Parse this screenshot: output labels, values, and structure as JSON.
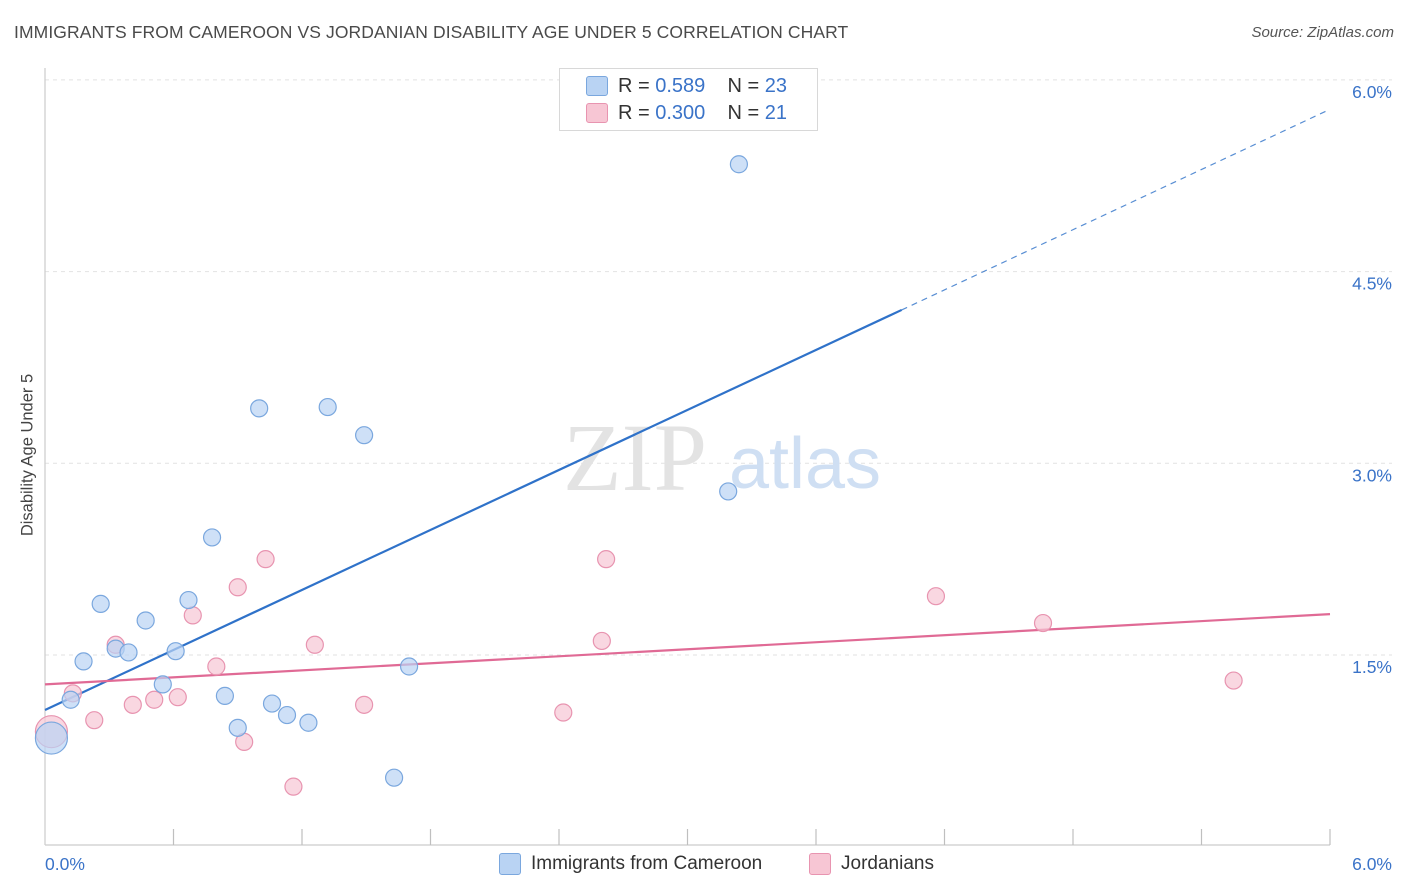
{
  "header": {
    "title": "IMMIGRANTS FROM CAMEROON VS JORDANIAN DISABILITY AGE UNDER 5 CORRELATION CHART",
    "source": "Source: ZipAtlas.com"
  },
  "watermark": {
    "zip": "ZIP",
    "atlas": "atlas"
  },
  "legend": {
    "rows": [
      {
        "r_label": "R =",
        "r_value": "0.589",
        "n_label": "N =",
        "n_value": "23"
      },
      {
        "r_label": "R =",
        "r_value": "0.300",
        "n_label": "N =",
        "n_value": "21"
      }
    ]
  },
  "bottom_legend": {
    "series1": "Immigrants from Cameroon",
    "series2": "Jordanians"
  },
  "colors": {
    "blue_fill": "#b9d3f3",
    "blue_stroke": "#7aa7de",
    "blue_line": "#2f72c9",
    "pink_fill": "#f7c6d4",
    "pink_stroke": "#e894b0",
    "pink_line": "#e06a95",
    "tick_label": "#3a73c8",
    "grid": "#e2e2e2"
  },
  "chart_data": {
    "type": "scatter",
    "title": "IMMIGRANTS FROM CAMEROON VS JORDANIAN DISABILITY AGE UNDER 5 CORRELATION CHART",
    "xlabel": "",
    "ylabel": "Disability Age Under 5",
    "xlim": [
      0,
      6.0
    ],
    "ylim": [
      0,
      6.3
    ],
    "x_tick_labels": [
      {
        "value": 0,
        "label": "0.0%"
      },
      {
        "value": 6.0,
        "label": "6.0%"
      }
    ],
    "y_tick_labels": [
      {
        "value": 1.5,
        "label": "1.5%"
      },
      {
        "value": 3.0,
        "label": "3.0%"
      },
      {
        "value": 4.5,
        "label": "4.5%"
      },
      {
        "value": 6.0,
        "label": "6.0%"
      }
    ],
    "x_minor_ticks": [
      0.6,
      1.2,
      1.8,
      2.4,
      3.0,
      3.6,
      4.2,
      4.8,
      5.4,
      6.0
    ],
    "grid": true,
    "series": [
      {
        "name": "Immigrants from Cameroon",
        "r": 0.589,
        "n": 23,
        "points": [
          {
            "x": 0.03,
            "y": 0.85,
            "size": "large"
          },
          {
            "x": 0.12,
            "y": 1.15
          },
          {
            "x": 0.18,
            "y": 1.45
          },
          {
            "x": 0.26,
            "y": 1.9
          },
          {
            "x": 0.33,
            "y": 1.55
          },
          {
            "x": 0.39,
            "y": 1.52
          },
          {
            "x": 0.47,
            "y": 1.77
          },
          {
            "x": 0.55,
            "y": 1.27
          },
          {
            "x": 0.61,
            "y": 1.53
          },
          {
            "x": 0.67,
            "y": 1.93
          },
          {
            "x": 0.78,
            "y": 2.42
          },
          {
            "x": 0.84,
            "y": 1.18
          },
          {
            "x": 0.9,
            "y": 0.93
          },
          {
            "x": 1.0,
            "y": 3.43
          },
          {
            "x": 1.06,
            "y": 1.12
          },
          {
            "x": 1.13,
            "y": 1.03
          },
          {
            "x": 1.23,
            "y": 0.97
          },
          {
            "x": 1.32,
            "y": 3.44
          },
          {
            "x": 1.49,
            "y": 3.22
          },
          {
            "x": 1.63,
            "y": 0.54
          },
          {
            "x": 1.7,
            "y": 1.41
          },
          {
            "x": 3.19,
            "y": 2.78
          },
          {
            "x": 3.24,
            "y": 5.34
          }
        ],
        "trend": {
          "x0": 0.0,
          "y0": 1.07,
          "x1": 4.0,
          "y1": 4.2,
          "dashed_to_x": 6.0,
          "dashed_to_y": 5.77
        }
      },
      {
        "name": "Jordanians",
        "r": 0.3,
        "n": 21,
        "points": [
          {
            "x": 0.03,
            "y": 0.9,
            "size": "large"
          },
          {
            "x": 0.13,
            "y": 1.2
          },
          {
            "x": 0.23,
            "y": 0.99
          },
          {
            "x": 0.33,
            "y": 1.58
          },
          {
            "x": 0.41,
            "y": 1.11
          },
          {
            "x": 0.51,
            "y": 1.15
          },
          {
            "x": 0.62,
            "y": 1.17
          },
          {
            "x": 0.69,
            "y": 1.81
          },
          {
            "x": 0.8,
            "y": 1.41
          },
          {
            "x": 0.9,
            "y": 2.03
          },
          {
            "x": 0.93,
            "y": 0.82
          },
          {
            "x": 1.03,
            "y": 2.25
          },
          {
            "x": 1.16,
            "y": 0.47
          },
          {
            "x": 1.26,
            "y": 1.58
          },
          {
            "x": 1.49,
            "y": 1.11
          },
          {
            "x": 2.42,
            "y": 1.05
          },
          {
            "x": 2.6,
            "y": 1.61
          },
          {
            "x": 2.62,
            "y": 2.25
          },
          {
            "x": 4.16,
            "y": 1.96
          },
          {
            "x": 4.66,
            "y": 1.75
          },
          {
            "x": 5.55,
            "y": 1.3
          }
        ],
        "trend": {
          "x0": 0.0,
          "y0": 1.27,
          "x1": 6.0,
          "y1": 1.82
        }
      }
    ]
  }
}
